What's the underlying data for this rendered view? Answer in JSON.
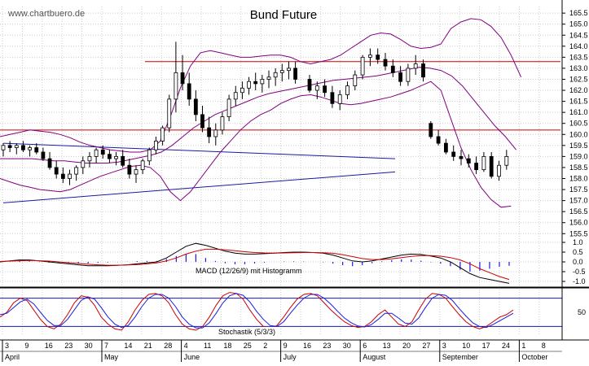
{
  "watermark": "www.chartbuero.de",
  "chart_data": [
    {
      "type": "candlestick",
      "title": "Bund Future",
      "y_ticks": [
        "155.5",
        "156.0",
        "156.5",
        "157.0",
        "157.5",
        "158.0",
        "158.5",
        "159.0",
        "159.5",
        "160.0",
        "160.5",
        "161.0",
        "161.5",
        "162.0",
        "162.5",
        "163.0",
        "163.5",
        "164.0",
        "164.5",
        "165.0",
        "165.5"
      ],
      "ylim": [
        155.4,
        165.8
      ],
      "x_ticks": [
        "3",
        "9",
        "16",
        "23",
        "30",
        "7",
        "14",
        "21",
        "28",
        "4",
        "11",
        "18",
        "25",
        "2",
        "9",
        "16",
        "23",
        "30",
        "6",
        "13",
        "20",
        "27",
        "3",
        "10",
        "17",
        "24",
        "1",
        "8"
      ],
      "month_labels": [
        "April",
        "May",
        "June",
        "July",
        "August",
        "September",
        "October"
      ],
      "resistance_levels": [
        163.3,
        160.2
      ],
      "support_trendline": {
        "from": [
          0,
          156.9
        ],
        "to": [
          40,
          158.3
        ]
      },
      "upper_trendline": {
        "from": [
          0,
          159.6
        ],
        "to": [
          40,
          158.9
        ]
      },
      "bollinger_upper": [
        159.9,
        160.0,
        160.1,
        160.2,
        160.15,
        160.1,
        160.0,
        159.85,
        159.65,
        159.5,
        159.4,
        159.3,
        159.25,
        159.2,
        159.2,
        159.3,
        159.7,
        160.8,
        162.1,
        163.1,
        163.7,
        163.8,
        163.7,
        163.6,
        163.5,
        163.5,
        163.55,
        163.6,
        163.6,
        163.5,
        163.3,
        163.2,
        163.3,
        163.4,
        163.6,
        163.9,
        164.2,
        164.5,
        164.6,
        164.55,
        164.3,
        164.0,
        163.9,
        163.95,
        164.1,
        164.8,
        165.1,
        165.25,
        165.2,
        164.9,
        164.4,
        163.6,
        162.6
      ],
      "bollinger_middle": [
        158.9,
        158.9,
        158.9,
        158.9,
        158.85,
        158.8,
        158.8,
        158.75,
        158.7,
        158.7,
        158.7,
        158.75,
        158.85,
        158.95,
        159.05,
        159.2,
        159.5,
        159.9,
        160.3,
        160.6,
        160.9,
        161.1,
        161.3,
        161.5,
        161.7,
        161.85,
        161.95,
        162.05,
        162.15,
        162.25,
        162.35,
        162.45,
        162.5,
        162.55,
        162.6,
        162.65,
        162.75,
        162.85,
        162.95,
        163.05,
        163.0,
        162.9,
        162.65,
        162.2,
        161.6,
        161.0,
        160.4,
        159.9,
        159.3
      ],
      "bollinger_lower": [
        158.0,
        157.85,
        157.7,
        157.6,
        157.5,
        157.45,
        157.4,
        157.5,
        157.7,
        157.9,
        158.1,
        158.25,
        158.4,
        158.55,
        158.6,
        158.5,
        158.1,
        157.4,
        157.0,
        157.4,
        158.0,
        158.6,
        159.2,
        159.7,
        160.2,
        160.6,
        160.9,
        161.1,
        161.4,
        161.6,
        161.75,
        161.8,
        161.7,
        161.55,
        161.4,
        161.35,
        161.4,
        161.5,
        161.6,
        161.7,
        161.85,
        162.0,
        162.2,
        162.4,
        162.0,
        160.7,
        159.4,
        158.4,
        157.6,
        157.05,
        156.7,
        156.75
      ],
      "ohlc": [
        [
          159.3,
          159.6,
          159.0,
          159.5
        ],
        [
          159.5,
          159.7,
          159.2,
          159.4
        ],
        [
          159.4,
          159.6,
          159.1,
          159.5
        ],
        [
          159.5,
          159.7,
          159.2,
          159.3
        ],
        [
          159.3,
          159.5,
          159.0,
          159.4
        ],
        [
          159.4,
          159.6,
          159.1,
          159.2
        ],
        [
          159.2,
          159.4,
          158.8,
          158.9
        ],
        [
          158.9,
          159.2,
          158.4,
          158.5
        ],
        [
          158.5,
          158.8,
          158.0,
          158.2
        ],
        [
          158.2,
          158.5,
          157.8,
          158.0
        ],
        [
          158.0,
          158.4,
          157.7,
          158.2
        ],
        [
          158.2,
          158.6,
          157.9,
          158.5
        ],
        [
          158.5,
          159.0,
          158.2,
          158.8
        ],
        [
          158.8,
          159.2,
          158.5,
          159.0
        ],
        [
          159.0,
          159.4,
          158.7,
          159.3
        ],
        [
          159.3,
          159.5,
          158.9,
          159.1
        ],
        [
          159.1,
          159.3,
          158.7,
          158.9
        ],
        [
          158.9,
          159.2,
          158.6,
          159.0
        ],
        [
          159.0,
          159.3,
          158.5,
          158.6
        ],
        [
          158.6,
          158.9,
          158.0,
          158.2
        ],
        [
          158.2,
          158.6,
          157.8,
          158.4
        ],
        [
          158.4,
          158.9,
          158.2,
          158.8
        ],
        [
          158.8,
          159.4,
          158.6,
          159.3
        ],
        [
          159.3,
          159.9,
          159.1,
          159.7
        ],
        [
          159.7,
          160.4,
          159.5,
          160.3
        ],
        [
          160.3,
          161.8,
          160.1,
          161.6
        ],
        [
          161.6,
          164.2,
          161.0,
          162.8
        ],
        [
          162.8,
          163.6,
          162.0,
          162.3
        ],
        [
          162.3,
          162.8,
          161.3,
          161.6
        ],
        [
          161.6,
          162.0,
          160.6,
          160.9
        ],
        [
          160.9,
          161.3,
          160.1,
          160.3
        ],
        [
          160.3,
          160.8,
          159.6,
          159.9
        ],
        [
          159.9,
          160.5,
          159.5,
          160.2
        ],
        [
          160.2,
          161.0,
          160.0,
          160.8
        ],
        [
          160.8,
          161.8,
          160.6,
          161.6
        ],
        [
          161.6,
          162.2,
          161.3,
          161.9
        ],
        [
          161.9,
          162.4,
          161.6,
          162.1
        ],
        [
          162.1,
          162.6,
          161.8,
          162.4
        ],
        [
          162.4,
          162.8,
          162.0,
          162.3
        ],
        [
          162.3,
          162.7,
          161.9,
          162.5
        ],
        [
          162.5,
          162.9,
          162.1,
          162.6
        ],
        [
          162.6,
          163.0,
          162.2,
          162.8
        ],
        [
          162.8,
          163.2,
          162.4,
          162.9
        ],
        [
          162.9,
          163.3,
          162.5,
          163.0
        ],
        [
          163.0,
          163.3,
          162.3,
          162.5
        ]
      ],
      "ohlc_late": [
        [
          162.5,
          162.7,
          161.9,
          162.0
        ],
        [
          162.0,
          162.4,
          161.6,
          162.2
        ],
        [
          162.2,
          162.5,
          161.7,
          161.9
        ],
        [
          161.9,
          162.2,
          161.2,
          161.4
        ],
        [
          161.4,
          162.0,
          161.1,
          161.8
        ],
        [
          161.8,
          162.4,
          161.6,
          162.2
        ],
        [
          162.2,
          162.9,
          162.0,
          162.7
        ],
        [
          162.7,
          163.6,
          162.5,
          163.5
        ],
        [
          163.5,
          163.9,
          163.1,
          163.6
        ],
        [
          163.6,
          163.9,
          163.2,
          163.4
        ],
        [
          163.4,
          163.7,
          162.9,
          163.1
        ],
        [
          163.1,
          163.4,
          162.6,
          162.8
        ],
        [
          162.8,
          163.1,
          162.2,
          162.4
        ],
        [
          162.4,
          163.2,
          162.2,
          163.0
        ],
        [
          163.0,
          163.6,
          162.7,
          163.2
        ],
        [
          163.2,
          163.4,
          162.4,
          162.6
        ],
        [
          160.5,
          160.6,
          159.8,
          159.9
        ],
        [
          159.9,
          160.2,
          159.5,
          159.6
        ],
        [
          159.6,
          159.8,
          159.1,
          159.2
        ],
        [
          159.2,
          159.5,
          158.8,
          159.0
        ],
        [
          159.0,
          159.3,
          158.6,
          158.9
        ],
        [
          158.9,
          159.1,
          158.5,
          158.7
        ],
        [
          158.7,
          159.0,
          158.2,
          158.4
        ],
        [
          158.4,
          159.2,
          158.3,
          159.0
        ],
        [
          159.0,
          159.2,
          158.0,
          158.1
        ],
        [
          158.1,
          158.8,
          157.9,
          158.6
        ],
        [
          158.6,
          159.3,
          158.4,
          159.0
        ]
      ]
    },
    {
      "type": "line",
      "title": "MACD (12/26/9) mit Histogramm",
      "y_ticks": [
        "1.0",
        "0.5",
        "0.0",
        "-0.5",
        "-1.0"
      ],
      "ylim": [
        -1.25,
        1.25
      ],
      "series": [
        {
          "values": [
            0.0,
            0.05,
            0.1,
            0.1,
            0.05,
            0.0,
            -0.05,
            -0.1,
            -0.15,
            -0.2,
            -0.2,
            -0.2,
            -0.18,
            -0.15,
            -0.1,
            -0.05,
            0.0,
            0.2,
            0.5,
            0.8,
            0.95,
            0.85,
            0.7,
            0.55,
            0.45,
            0.4,
            0.4,
            0.42,
            0.45,
            0.48,
            0.5,
            0.5,
            0.48,
            0.45,
            0.35,
            0.2,
            0.05,
            0.0,
            0.05,
            0.15,
            0.25,
            0.35,
            0.4,
            0.38,
            0.3,
            0.2,
            0.0,
            -0.3,
            -0.6,
            -0.8,
            -0.9,
            -1.0,
            -1.1
          ]
        },
        {
          "values": [
            0.02,
            0.04,
            0.06,
            0.07,
            0.06,
            0.04,
            0.0,
            -0.04,
            -0.08,
            -0.12,
            -0.15,
            -0.17,
            -0.17,
            -0.16,
            -0.14,
            -0.1,
            -0.05,
            0.05,
            0.2,
            0.4,
            0.55,
            0.65,
            0.65,
            0.62,
            0.57,
            0.52,
            0.48,
            0.46,
            0.45,
            0.46,
            0.47,
            0.48,
            0.48,
            0.47,
            0.44,
            0.37,
            0.27,
            0.17,
            0.12,
            0.12,
            0.16,
            0.22,
            0.28,
            0.32,
            0.32,
            0.29,
            0.22,
            0.1,
            -0.1,
            -0.35,
            -0.55,
            -0.75,
            -0.9
          ]
        }
      ],
      "histogram": [
        -0.02,
        0.01,
        0.04,
        0.03,
        -0.01,
        -0.04,
        -0.05,
        -0.06,
        -0.07,
        -0.08,
        -0.05,
        -0.03,
        -0.01,
        0.01,
        0.04,
        0.05,
        0.05,
        0.15,
        0.3,
        0.4,
        0.4,
        0.2,
        0.05,
        -0.07,
        -0.12,
        -0.12,
        -0.08,
        -0.04,
        0.0,
        0.02,
        0.03,
        0.02,
        0.0,
        -0.02,
        -0.09,
        -0.17,
        -0.22,
        -0.17,
        -0.07,
        0.03,
        0.09,
        0.13,
        0.12,
        0.06,
        -0.02,
        -0.09,
        -0.22,
        -0.4,
        -0.5,
        -0.45,
        -0.35,
        -0.25,
        -0.2
      ]
    },
    {
      "type": "line",
      "title": "Stochastik (5/3/3)",
      "y_ticks": [
        "50"
      ],
      "ylim": [
        0,
        100
      ],
      "reference_levels": [
        80,
        20
      ],
      "series": [
        {
          "values": [
            40,
            50,
            70,
            80,
            75,
            55,
            35,
            20,
            15,
            25,
            45,
            70,
            85,
            82,
            65,
            40,
            25,
            15,
            12,
            30,
            55,
            75,
            88,
            90,
            85,
            70,
            45,
            25,
            15,
            12,
            20,
            40,
            65,
            85,
            92,
            90,
            78,
            55,
            35,
            20,
            15,
            22,
            40,
            60,
            78,
            88,
            90,
            85,
            70,
            55,
            42,
            30,
            22,
            18,
            20,
            30,
            45,
            55,
            40,
            25,
            20,
            30,
            55,
            78,
            90,
            88,
            80,
            62,
            45,
            30,
            20,
            15,
            20,
            30,
            40,
            45,
            55
          ]
        },
        {
          "values": [
            45,
            48,
            60,
            72,
            78,
            68,
            50,
            33,
            22,
            22,
            35,
            55,
            75,
            83,
            78,
            60,
            40,
            25,
            18,
            22,
            40,
            62,
            80,
            88,
            88,
            80,
            62,
            40,
            25,
            17,
            17,
            28,
            48,
            70,
            85,
            90,
            86,
            72,
            52,
            35,
            22,
            20,
            30,
            48,
            65,
            80,
            88,
            88,
            80,
            67,
            52,
            38,
            28,
            21,
            19,
            24,
            35,
            48,
            48,
            38,
            27,
            25,
            38,
            60,
            80,
            88,
            86,
            75,
            58,
            42,
            28,
            20,
            18,
            24,
            32,
            40,
            48
          ]
        }
      ]
    }
  ],
  "colors": {
    "candle_up": "#ffffff",
    "candle_down": "#000000",
    "bollinger": "#800080",
    "resistance": "#cc0000",
    "trendline": "#1a1aa0",
    "macd_line_black": "#000000",
    "macd_line_red": "#cc0000",
    "histogram": "#1a1ae0",
    "stoch_red": "#cc0000",
    "stoch_blue": "#1a1ae0",
    "stoch_levels": "#1a1aa0",
    "grid": "#cccccc"
  }
}
